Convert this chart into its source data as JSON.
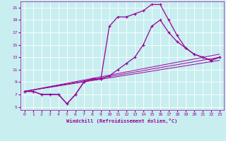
{
  "xlabel": "Windchill (Refroidissement éolien,°C)",
  "xlim": [
    -0.5,
    23.5
  ],
  "ylim": [
    4.5,
    22
  ],
  "xticks": [
    0,
    1,
    2,
    3,
    4,
    5,
    6,
    7,
    8,
    9,
    10,
    11,
    12,
    13,
    14,
    15,
    16,
    17,
    18,
    19,
    20,
    21,
    22,
    23
  ],
  "yticks": [
    5,
    7,
    9,
    11,
    13,
    15,
    17,
    19,
    21
  ],
  "background_color": "#c8eef0",
  "line_color": "#990099",
  "grid_color": "#ffffff",
  "curve_main_x": [
    0,
    1,
    2,
    3,
    4,
    5,
    6,
    7,
    8,
    9,
    10,
    11,
    12,
    13,
    14,
    15,
    16,
    17,
    18,
    19,
    20,
    21,
    22,
    23
  ],
  "curve_main_y": [
    7.5,
    7.5,
    7.0,
    7.0,
    7.0,
    5.5,
    7.0,
    9.0,
    9.5,
    9.5,
    18.0,
    19.5,
    19.5,
    20.0,
    20.5,
    21.5,
    21.5,
    19.0,
    16.5,
    14.5,
    13.5,
    13.0,
    12.5,
    13.0
  ],
  "curve_sub_x": [
    0,
    1,
    2,
    3,
    4,
    5,
    6,
    7,
    8,
    9,
    10,
    11,
    12,
    13,
    14,
    15,
    16,
    17,
    18,
    19,
    20,
    21,
    22,
    23
  ],
  "curve_sub_y": [
    7.5,
    7.5,
    7.0,
    7.0,
    7.0,
    5.5,
    7.0,
    9.0,
    9.5,
    9.5,
    10.0,
    11.0,
    12.0,
    13.0,
    15.0,
    18.0,
    19.0,
    17.0,
    15.5,
    14.5,
    13.5,
    13.0,
    12.5,
    13.0
  ],
  "line1_x": [
    0,
    23
  ],
  "line1_y": [
    7.5,
    13.0
  ],
  "line2_x": [
    0,
    23
  ],
  "line2_y": [
    7.5,
    12.5
  ],
  "line3_x": [
    0,
    23
  ],
  "line3_y": [
    7.5,
    13.5
  ]
}
